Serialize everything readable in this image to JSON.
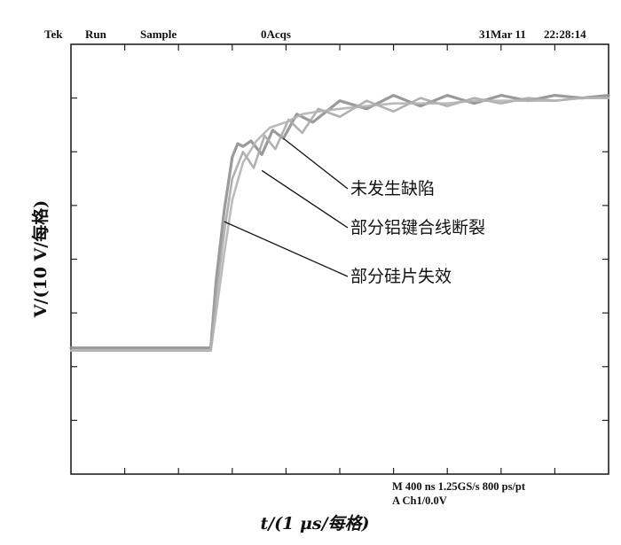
{
  "header": {
    "brand": "Tek",
    "run_state": "Run",
    "mode": "Sample",
    "acquisitions": "0Acqs",
    "date": "31Mar 11",
    "time": "22:28:14"
  },
  "footer": {
    "line1": "M 400 ns 1.25GS/s  800 ps/pt",
    "line2": "A Ch1/0.0V"
  },
  "colors": {
    "trace": "#9a9a9a",
    "trace_dark": "#7d7d7d",
    "trace_light": "#bdbdbd",
    "frame": "#222222",
    "text": "#111111"
  },
  "chart_data": {
    "type": "line",
    "title": "",
    "xlabel": "t/(1 μs/每格)",
    "ylabel": "V/(10 V/每格)",
    "x_divisions": 10,
    "y_divisions": 8,
    "xlim": [
      0,
      10
    ],
    "ylim": [
      0,
      8
    ],
    "grid": false,
    "series": [
      {
        "name": "未发生缺陷",
        "color": "#8f8f8f",
        "x": [
          0,
          2.6,
          2.7,
          2.85,
          3.0,
          3.1,
          3.2,
          3.35,
          3.55,
          3.75,
          3.95,
          4.2,
          4.5,
          5.0,
          5.5,
          6.0,
          6.5,
          7.0,
          7.5,
          8.0,
          8.5,
          9.0,
          9.5,
          10.0
        ],
        "values": [
          2.35,
          2.35,
          3.6,
          4.9,
          5.9,
          6.15,
          6.1,
          6.2,
          5.95,
          6.4,
          6.25,
          6.7,
          6.55,
          6.95,
          6.8,
          7.05,
          6.85,
          7.05,
          6.9,
          7.05,
          6.95,
          7.05,
          7.0,
          7.05
        ]
      },
      {
        "name": "部分铝键合线断裂",
        "color": "#a8a8a8",
        "x": [
          0,
          2.6,
          2.7,
          2.85,
          3.0,
          3.2,
          3.4,
          3.6,
          3.8,
          4.05,
          4.3,
          4.6,
          5.0,
          5.5,
          6.0,
          6.5,
          7.0,
          7.5,
          8.0,
          8.5,
          9.0,
          9.5,
          10.0
        ],
        "values": [
          2.3,
          2.3,
          3.3,
          4.5,
          5.5,
          6.0,
          5.7,
          6.3,
          6.05,
          6.6,
          6.35,
          6.8,
          6.65,
          6.95,
          6.75,
          7.0,
          6.85,
          7.0,
          6.9,
          7.0,
          6.95,
          7.0,
          7.0
        ]
      },
      {
        "name": "部分硅片失效",
        "color": "#b4b4b4",
        "x": [
          0,
          2.6,
          2.7,
          2.85,
          3.0,
          3.2,
          3.45,
          3.7,
          4.0,
          4.3,
          4.6,
          5.0,
          5.5,
          6.0,
          6.5,
          7.0,
          7.5,
          8.0,
          8.5,
          9.0,
          9.5,
          10.0
        ],
        "values": [
          2.3,
          2.3,
          3.0,
          4.1,
          5.1,
          5.8,
          6.2,
          6.45,
          6.55,
          6.7,
          6.75,
          6.8,
          6.85,
          6.9,
          6.9,
          6.9,
          6.95,
          6.95,
          6.95,
          6.95,
          7.0,
          7.0
        ]
      }
    ],
    "annotations": [
      {
        "text": "未发生缺陷",
        "x": 3.95,
        "y": 6.25
      },
      {
        "text": "部分铝键合线断裂",
        "x": 3.55,
        "y": 5.65
      },
      {
        "text": "部分硅片失效",
        "x": 2.85,
        "y": 4.7
      }
    ]
  }
}
